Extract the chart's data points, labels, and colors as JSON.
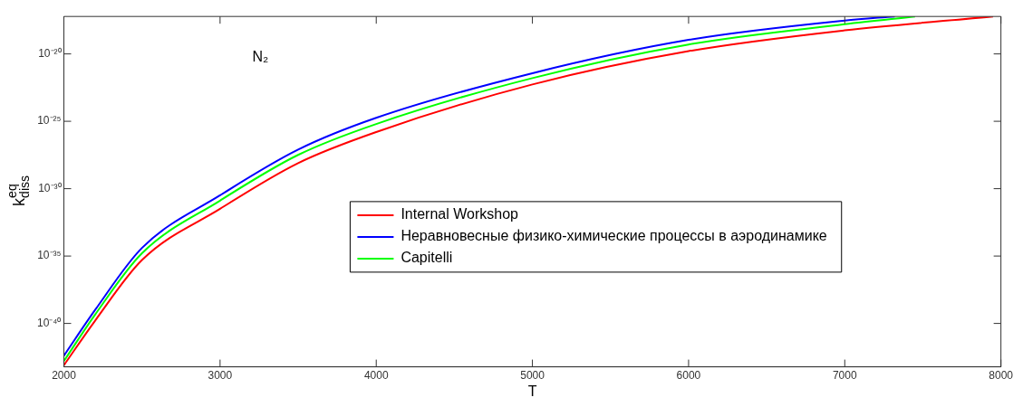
{
  "chart_data": {
    "type": "line",
    "xlabel": "T",
    "ylabel": "k$^{eq}$$_{diss}$",
    "annotations": [
      "N₂"
    ],
    "log": "y",
    "grid": false,
    "legend": "center",
    "marker": "none",
    "line_style": "solid",
    "xlim": [
      2000,
      8000
    ],
    "xticks": [
      2000,
      3000,
      4000,
      5000,
      6000,
      7000,
      8000
    ],
    "ylim": [
      6e-44,
      6e-18
    ],
    "yticks": [
      {
        "value": 1e-40,
        "label": "10⁻⁴⁰"
      },
      {
        "value": 1e-35,
        "label": "10⁻³⁵"
      },
      {
        "value": 1e-30,
        "label": "10⁻³⁰"
      },
      {
        "value": 1e-25,
        "label": "10⁻²⁵"
      },
      {
        "value": 1e-20,
        "label": "10⁻²⁰"
      }
    ],
    "series": [
      {
        "name": "Internal Workshop",
        "color": "#ff0000",
        "x": [
          2000,
          2200,
          2500,
          3000,
          3500,
          4000,
          5000,
          6000,
          7000,
          7950
        ],
        "values": [
          7.9e-44,
          1.6e-40,
          5e-36,
          3.2e-32,
          7.9e-29,
          1.6e-26,
          5.4e-23,
          1.6e-20,
          5.6e-19,
          6e-18
        ]
      },
      {
        "name": "Неравновесные физико-химические процессы в аэродинамике",
        "color": "#0000ff",
        "x": [
          2000,
          2200,
          2500,
          3000,
          3500,
          4000,
          5000,
          6000,
          7000,
          7320
        ],
        "values": [
          4e-43,
          1e-39,
          4e-35,
          3.2e-31,
          7.9e-28,
          1.8e-25,
          3.7e-22,
          1.1e-19,
          3e-18,
          6e-18
        ]
      },
      {
        "name": "Capitelli",
        "color": "#00ff00",
        "x": [
          2000,
          2200,
          2500,
          3000,
          3500,
          4000,
          5000,
          6000,
          7000,
          7450
        ],
        "values": [
          1.6e-43,
          4.5e-40,
          1.6e-35,
          1.3e-31,
          3.2e-28,
          6.3e-26,
          1.6e-22,
          5e-20,
          1.6e-18,
          6e-18
        ]
      }
    ]
  }
}
